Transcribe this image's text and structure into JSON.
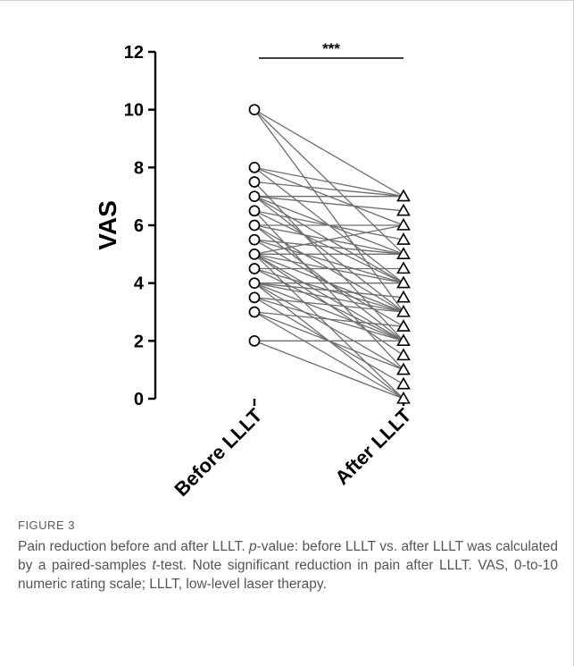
{
  "chart_data": {
    "type": "scatter",
    "ylabel": "VAS",
    "ylim": [
      0,
      12
    ],
    "yticks": [
      0,
      2,
      4,
      6,
      8,
      10,
      12
    ],
    "categories": [
      "Before LLLT",
      "After LLLT"
    ],
    "markers": {
      "before": "open-circle",
      "after": "open-triangle"
    },
    "line_color": "#6e6e6e",
    "significance": "***",
    "pairs": [
      [
        10,
        7
      ],
      [
        10,
        5
      ],
      [
        10,
        3
      ],
      [
        8,
        7
      ],
      [
        8,
        6
      ],
      [
        8,
        4
      ],
      [
        7.5,
        7
      ],
      [
        7.5,
        2
      ],
      [
        7,
        7
      ],
      [
        7,
        6.5
      ],
      [
        7,
        5
      ],
      [
        7,
        4
      ],
      [
        7,
        3
      ],
      [
        6.5,
        5.5
      ],
      [
        6.5,
        4
      ],
      [
        6.5,
        1
      ],
      [
        6,
        6
      ],
      [
        6,
        5
      ],
      [
        6,
        3
      ],
      [
        6,
        2
      ],
      [
        5.5,
        5
      ],
      [
        5.5,
        4
      ],
      [
        5.5,
        2.5
      ],
      [
        5,
        6
      ],
      [
        5,
        5
      ],
      [
        5,
        4
      ],
      [
        5,
        3
      ],
      [
        5,
        2
      ],
      [
        5,
        1.5
      ],
      [
        5,
        0
      ],
      [
        4.5,
        4.5
      ],
      [
        4.5,
        3
      ],
      [
        4.5,
        2
      ],
      [
        4,
        4
      ],
      [
        4,
        3.5
      ],
      [
        4,
        3
      ],
      [
        4,
        2
      ],
      [
        4,
        1
      ],
      [
        4,
        0
      ],
      [
        3.5,
        3
      ],
      [
        3.5,
        2
      ],
      [
        3.5,
        0.5
      ],
      [
        3,
        2.5
      ],
      [
        3,
        1
      ],
      [
        3,
        0
      ],
      [
        2,
        2
      ],
      [
        2,
        0
      ]
    ]
  },
  "caption": {
    "label": "FIGURE 3",
    "text_1": "Pain reduction before and after LLLT. ",
    "p_symbol": "p",
    "text_2": "-value: before LLLT vs. after LLLT was calculated by a paired-samples ",
    "t_symbol": "t",
    "text_3": "-test. Note significant reduction in pain after LLLT. VAS, 0-to-10 numeric rating scale; LLLT, low-level laser therapy."
  }
}
